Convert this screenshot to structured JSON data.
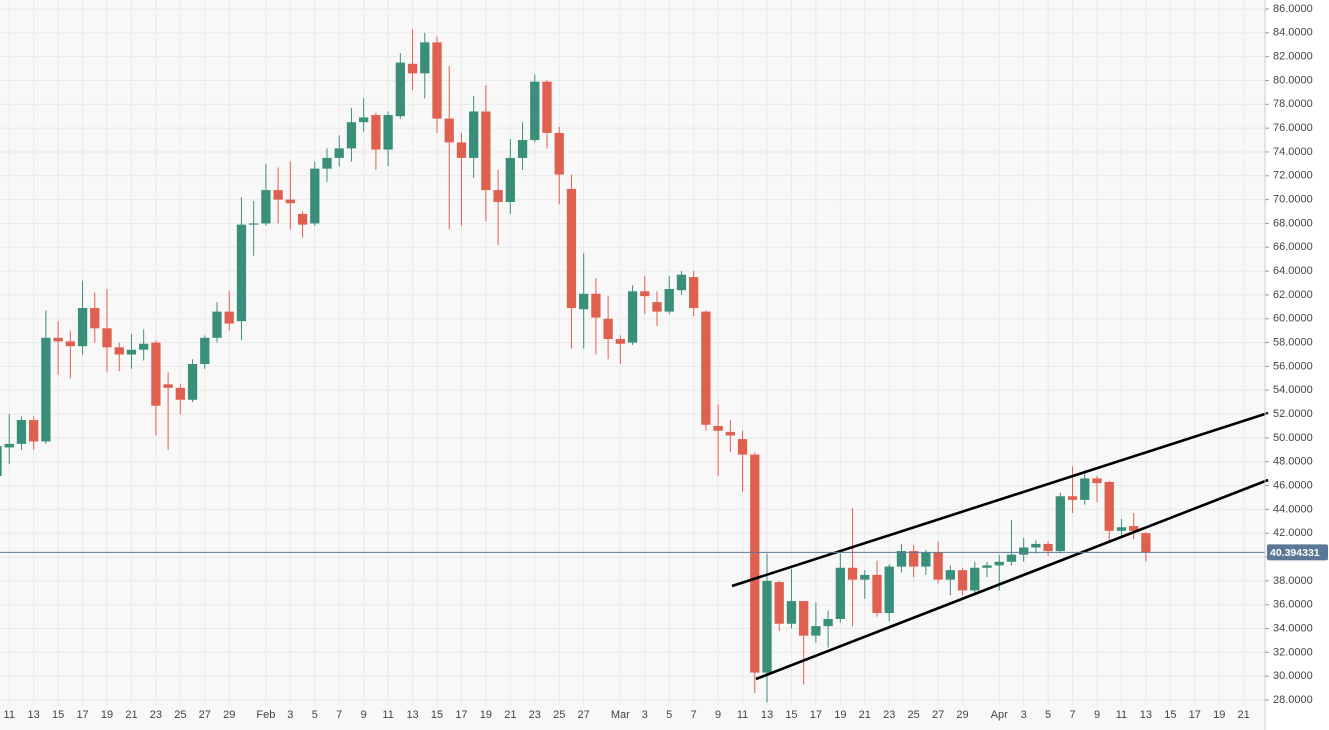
{
  "chart_data": {
    "type": "candlestick",
    "up_color": "#3a8f7a",
    "down_color": "#e0604f",
    "grid": true,
    "categories": [
      null,
      "11",
      null,
      "13",
      null,
      "15",
      null,
      "17",
      null,
      "19",
      null,
      "21",
      null,
      "23",
      null,
      "25",
      null,
      "27",
      null,
      "29",
      null,
      null,
      "Feb",
      null,
      "3",
      null,
      "5",
      null,
      "7",
      null,
      "9",
      null,
      "11",
      null,
      "13",
      null,
      "15",
      null,
      "17",
      null,
      "19",
      null,
      "21",
      null,
      "23",
      null,
      "25",
      null,
      "27",
      null,
      null,
      "Mar",
      null,
      "3",
      null,
      "5",
      null,
      "7",
      null,
      "9",
      null,
      "11",
      null,
      "13",
      null,
      "15",
      null,
      "17",
      null,
      "19",
      null,
      "21",
      null,
      "23",
      null,
      "25",
      null,
      "27",
      null,
      "29",
      null,
      null,
      "Apr",
      null,
      "3",
      null,
      "5",
      null,
      "7",
      null,
      "9",
      null,
      "11",
      null,
      "13",
      null,
      "15",
      null,
      "17",
      null,
      "19",
      null,
      "21",
      null
    ],
    "open": [
      46.8,
      49.2,
      49.5,
      51.5,
      49.7,
      58.4,
      58.1,
      57.7,
      60.9,
      59.2,
      57.6,
      57.0,
      57.4,
      58.0,
      54.5,
      54.2,
      53.2,
      56.2,
      58.4,
      60.6,
      59.8,
      67.9,
      68.0,
      70.8,
      70.0,
      68.8,
      68.0,
      72.6,
      73.5,
      74.3,
      76.5,
      77.1,
      74.2,
      77.0,
      81.4,
      80.6,
      83.2,
      76.8,
      74.8,
      73.5,
      77.4,
      70.8,
      69.8,
      73.5,
      75.0,
      79.9,
      75.6,
      70.9,
      60.8,
      62.1,
      60.0,
      58.3,
      58.0,
      62.3,
      61.4,
      60.6,
      62.4,
      63.5,
      60.6,
      51.0,
      50.5,
      49.9,
      48.6,
      30.3,
      37.9,
      34.4,
      36.3,
      33.4,
      34.2,
      34.8,
      39.1,
      38.1,
      38.5,
      35.3,
      39.2,
      40.5,
      39.2,
      40.4,
      38.1,
      38.9,
      37.2,
      39.1,
      39.3,
      39.6,
      40.2,
      40.8,
      41.1,
      40.5,
      45.1,
      44.8,
      46.6,
      46.3,
      42.2,
      42.6,
      42.0,
      null,
      null,
      null,
      null,
      null,
      null,
      null,
      null,
      null
    ],
    "high": [
      50.0,
      52.0,
      51.8,
      51.8,
      60.7,
      59.8,
      59.0,
      63.2,
      62.2,
      62.5,
      58.0,
      58.7,
      59.1,
      58.2,
      55.5,
      54.5,
      56.6,
      58.6,
      61.4,
      62.3,
      70.2,
      69.9,
      73.0,
      72.7,
      73.2,
      69.0,
      73.2,
      74.3,
      75.4,
      77.7,
      78.5,
      77.3,
      77.4,
      82.3,
      84.3,
      84.0,
      83.7,
      81.2,
      75.6,
      78.7,
      79.6,
      72.5,
      75.1,
      76.5,
      80.5,
      80.0,
      76.1,
      72.1,
      65.5,
      63.4,
      61.9,
      58.6,
      62.8,
      63.6,
      62.3,
      63.6,
      64.0,
      64.0,
      60.7,
      52.8,
      51.5,
      50.6,
      48.8,
      40.3,
      38.0,
      39.0,
      36.3,
      36.2,
      35.5,
      40.3,
      44.1,
      38.9,
      39.7,
      39.4,
      41.1,
      41.0,
      40.6,
      41.3,
      39.3,
      39.1,
      39.6,
      39.6,
      40.2,
      43.1,
      41.6,
      41.4,
      41.3,
      45.4,
      47.6,
      47.3,
      46.8,
      46.4,
      43.2,
      43.7,
      42.1,
      null,
      null,
      null,
      null,
      null,
      null,
      null,
      null,
      null
    ],
    "low": [
      46.5,
      47.8,
      49.0,
      49.0,
      49.5,
      55.3,
      55.0,
      57.0,
      58.0,
      55.5,
      55.6,
      55.8,
      56.5,
      50.2,
      49.0,
      52.0,
      53.0,
      55.8,
      58.0,
      59.0,
      58.2,
      65.3,
      67.8,
      68.0,
      67.5,
      66.8,
      67.8,
      71.5,
      72.8,
      73.2,
      75.7,
      72.5,
      72.8,
      76.8,
      79.2,
      78.5,
      75.6,
      67.5,
      67.8,
      71.8,
      68.2,
      66.2,
      68.8,
      72.5,
      74.8,
      74.3,
      69.6,
      57.5,
      57.5,
      57.0,
      56.6,
      56.2,
      57.8,
      60.4,
      59.4,
      60.4,
      62.0,
      60.2,
      50.6,
      46.8,
      48.8,
      45.5,
      28.6,
      27.8,
      33.8,
      34.0,
      29.3,
      32.8,
      32.4,
      34.5,
      34.2,
      36.5,
      35.0,
      34.6,
      38.7,
      38.3,
      38.5,
      37.8,
      36.8,
      36.8,
      37.0,
      38.3,
      37.2,
      39.3,
      39.6,
      40.3,
      40.1,
      40.3,
      43.7,
      44.4,
      44.6,
      41.4,
      41.6,
      41.5,
      39.6,
      null,
      null,
      null,
      null,
      null,
      null,
      null,
      null,
      null
    ],
    "close": [
      49.3,
      49.5,
      51.5,
      49.7,
      58.4,
      58.1,
      57.7,
      60.9,
      59.2,
      57.6,
      57.0,
      57.4,
      57.9,
      52.7,
      54.2,
      53.2,
      56.2,
      58.4,
      60.6,
      59.6,
      67.9,
      68.0,
      70.8,
      70.0,
      69.7,
      67.9,
      72.6,
      73.5,
      74.3,
      76.5,
      76.9,
      74.2,
      77.1,
      81.5,
      80.6,
      83.2,
      76.8,
      74.8,
      73.5,
      77.4,
      70.8,
      69.8,
      73.5,
      75.0,
      79.9,
      75.6,
      72.1,
      60.9,
      62.1,
      60.1,
      58.3,
      57.9,
      62.3,
      61.9,
      60.6,
      62.5,
      63.7,
      60.9,
      51.1,
      50.6,
      50.2,
      48.6,
      30.3,
      38.0,
      34.4,
      36.3,
      33.4,
      34.2,
      34.8,
      39.1,
      38.1,
      38.5,
      35.3,
      39.2,
      40.5,
      39.2,
      40.4,
      38.1,
      38.9,
      37.2,
      39.1,
      39.3,
      39.6,
      40.2,
      40.8,
      41.1,
      40.5,
      45.1,
      44.8,
      46.6,
      46.2,
      42.2,
      42.5,
      42.2,
      40.4,
      null,
      null,
      null,
      null,
      null,
      null,
      null,
      null,
      null
    ],
    "ylim": [
      28,
      86
    ],
    "yticks": [
      {
        "value": 28,
        "label": "28.0000"
      },
      {
        "value": 30,
        "label": "30.0000"
      },
      {
        "value": 32,
        "label": "32.0000"
      },
      {
        "value": 34,
        "label": "34.0000"
      },
      {
        "value": 36,
        "label": "36.0000"
      },
      {
        "value": 38,
        "label": "38.0000"
      },
      {
        "value": 40,
        "label": "40.0000"
      },
      {
        "value": 42,
        "label": "42.0000"
      },
      {
        "value": 44,
        "label": "44.0000"
      },
      {
        "value": 46,
        "label": "46.0000"
      },
      {
        "value": 48,
        "label": "48.0000"
      },
      {
        "value": 50,
        "label": "50.0000"
      },
      {
        "value": 52,
        "label": "52.0000"
      },
      {
        "value": 54,
        "label": "54.0000"
      },
      {
        "value": 56,
        "label": "56.0000"
      },
      {
        "value": 58,
        "label": "58.0000"
      },
      {
        "value": 60,
        "label": "60.0000"
      },
      {
        "value": 62,
        "label": "62.0000"
      },
      {
        "value": 64,
        "label": "64.0000"
      },
      {
        "value": 66,
        "label": "66.0000"
      },
      {
        "value": 68,
        "label": "68.0000"
      },
      {
        "value": 70,
        "label": "70.0000"
      },
      {
        "value": 72,
        "label": "72.0000"
      },
      {
        "value": 74,
        "label": "74.0000"
      },
      {
        "value": 76,
        "label": "76.0000"
      },
      {
        "value": 78,
        "label": "78.0000"
      },
      {
        "value": 80,
        "label": "80.0000"
      },
      {
        "value": 82,
        "label": "82.0000"
      },
      {
        "value": 84,
        "label": "84.0000"
      },
      {
        "value": 86,
        "label": "86.0000"
      }
    ],
    "price_line": 40.394331,
    "price_line_color": "#5a7896"
  }
}
